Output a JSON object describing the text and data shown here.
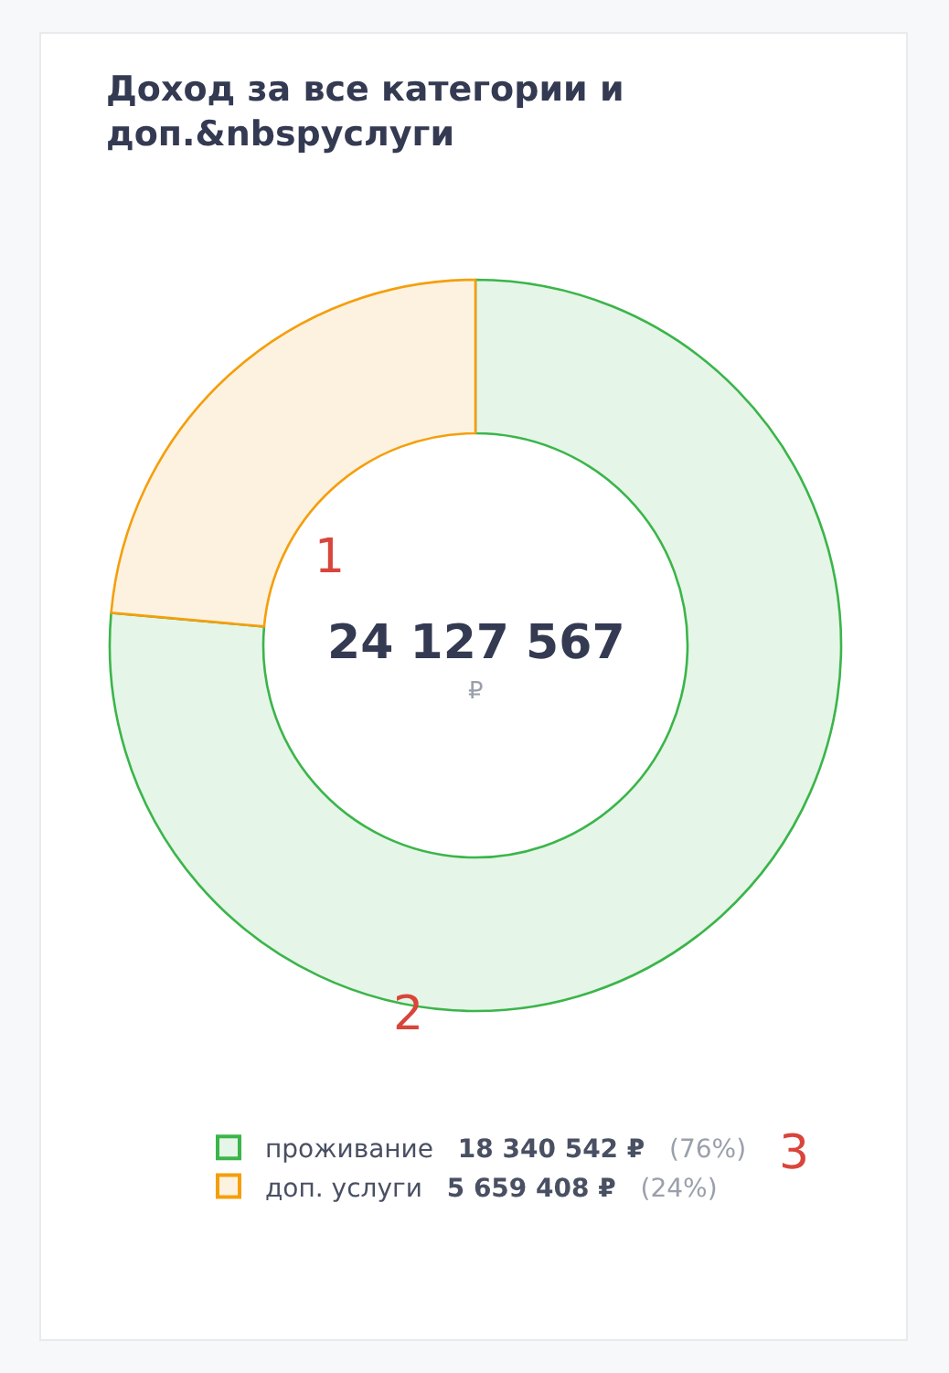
{
  "chart_data": {
    "type": "donut",
    "title": "Доход за все категории и доп.&nbspуслуги",
    "categories": [
      "проживание",
      "доп. услуги"
    ],
    "values": [
      18340542,
      5659408
    ],
    "colors": [
      "#3bb54a",
      "#f59e0b"
    ],
    "value_labels": [
      "18 340 542 ₽ (76%)",
      "5 659 408 ₽ (24%)"
    ],
    "legend": "bottom",
    "annotations": [
      "24 127 567",
      "₽",
      "1",
      "2",
      "3"
    ]
  }
}
